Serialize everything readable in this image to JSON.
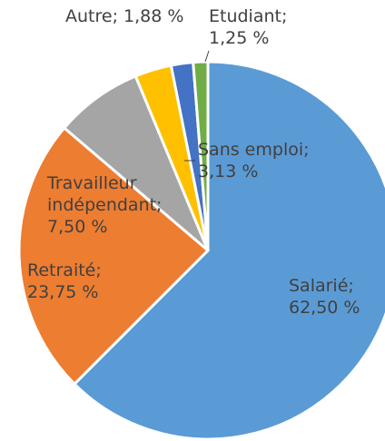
{
  "chart_data": {
    "type": "pie",
    "values": [
      62.5,
      23.75,
      7.5,
      3.13,
      1.88,
      1.25
    ],
    "value_labels": [
      "Salarié; 62,50 %",
      "Retraité; 23,75 %",
      "Travailleur indépendant; 7,50 %",
      "Sans emploi; 3,13 %",
      "Autre; 1,88 %",
      "Etudiant; 1,25 %"
    ],
    "colors": [
      "#5b9bd5",
      "#ed7d31",
      "#a5a5a5",
      "#ffc000",
      "#4472c4",
      "#70ad47"
    ]
  }
}
